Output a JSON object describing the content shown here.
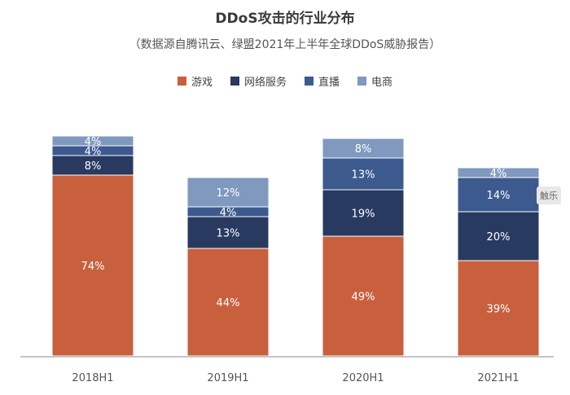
{
  "chart_data": {
    "type": "bar",
    "stacked": true,
    "title": "DDoS攻击的行业分布",
    "subtitle": "（数据源自腾讯云、绿盟2021年上半年全球DDoS威胁报告）",
    "categories": [
      "2018H1",
      "2019H1",
      "2020H1",
      "2021H1"
    ],
    "series": [
      {
        "name": "游戏",
        "color": "#c8603e",
        "values": [
          74,
          44,
          49,
          39
        ]
      },
      {
        "name": "网络服务",
        "color": "#283a60",
        "values": [
          8,
          13,
          19,
          20
        ]
      },
      {
        "name": "直播",
        "color": "#3c5a8e",
        "values": [
          4,
          4,
          13,
          14
        ]
      },
      {
        "name": "电商",
        "color": "#7f99bf",
        "values": [
          4,
          12,
          8,
          4
        ]
      }
    ],
    "value_suffix": "%",
    "ylim": [
      0,
      100
    ],
    "legend_position": "top"
  },
  "watermark": "触乐"
}
